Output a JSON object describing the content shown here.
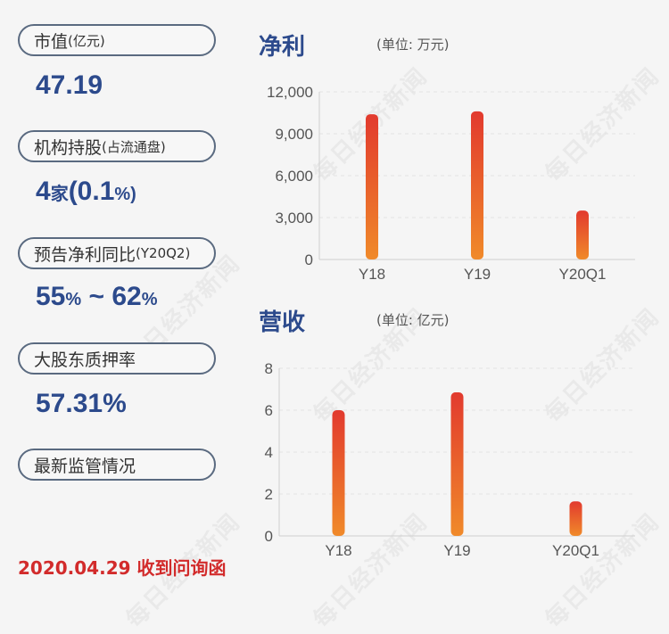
{
  "left": {
    "market_cap": {
      "label": "市值",
      "label_suffix": "(亿元)",
      "value": "47.19"
    },
    "institution": {
      "label": "机构持股",
      "label_suffix": "(占流通盘)",
      "count": "4",
      "count_unit": "家",
      "pct": "(0.1",
      "pct_unit": "%)"
    },
    "forecast": {
      "label": "预告净利同比",
      "label_suffix": "(Y20Q2)",
      "low": "55",
      "high": "62",
      "pct_unit": "%",
      "sep": " ~ "
    },
    "pledge": {
      "label": "大股东质押率",
      "value": "57.31%"
    },
    "regulation": {
      "label": "最新监管情况"
    },
    "event": "2020.04.29 收到问询函"
  },
  "watermark": "每日经济新闻",
  "chart_data": [
    {
      "type": "bar",
      "title": "净利",
      "unit": "(单位: 万元)",
      "categories": [
        "Y18",
        "Y19",
        "Y20Q1"
      ],
      "values": [
        10400,
        10600,
        3500
      ],
      "yticks": [
        "0",
        "3,000",
        "6,000",
        "9,000",
        "12,000"
      ],
      "ylim": [
        0,
        12000
      ]
    },
    {
      "type": "bar",
      "title": "营收",
      "unit": "(单位: 亿元)",
      "categories": [
        "Y18",
        "Y19",
        "Y20Q1"
      ],
      "values": [
        6.0,
        6.85,
        1.65
      ],
      "yticks": [
        "0",
        "2",
        "4",
        "6",
        "8"
      ],
      "ylim": [
        0,
        8
      ]
    }
  ],
  "colors": {
    "bar_top": "#e23a2e",
    "bar_bottom": "#f08a2a",
    "value_blue": "#2c4a8c",
    "event_red": "#d22b2b"
  }
}
